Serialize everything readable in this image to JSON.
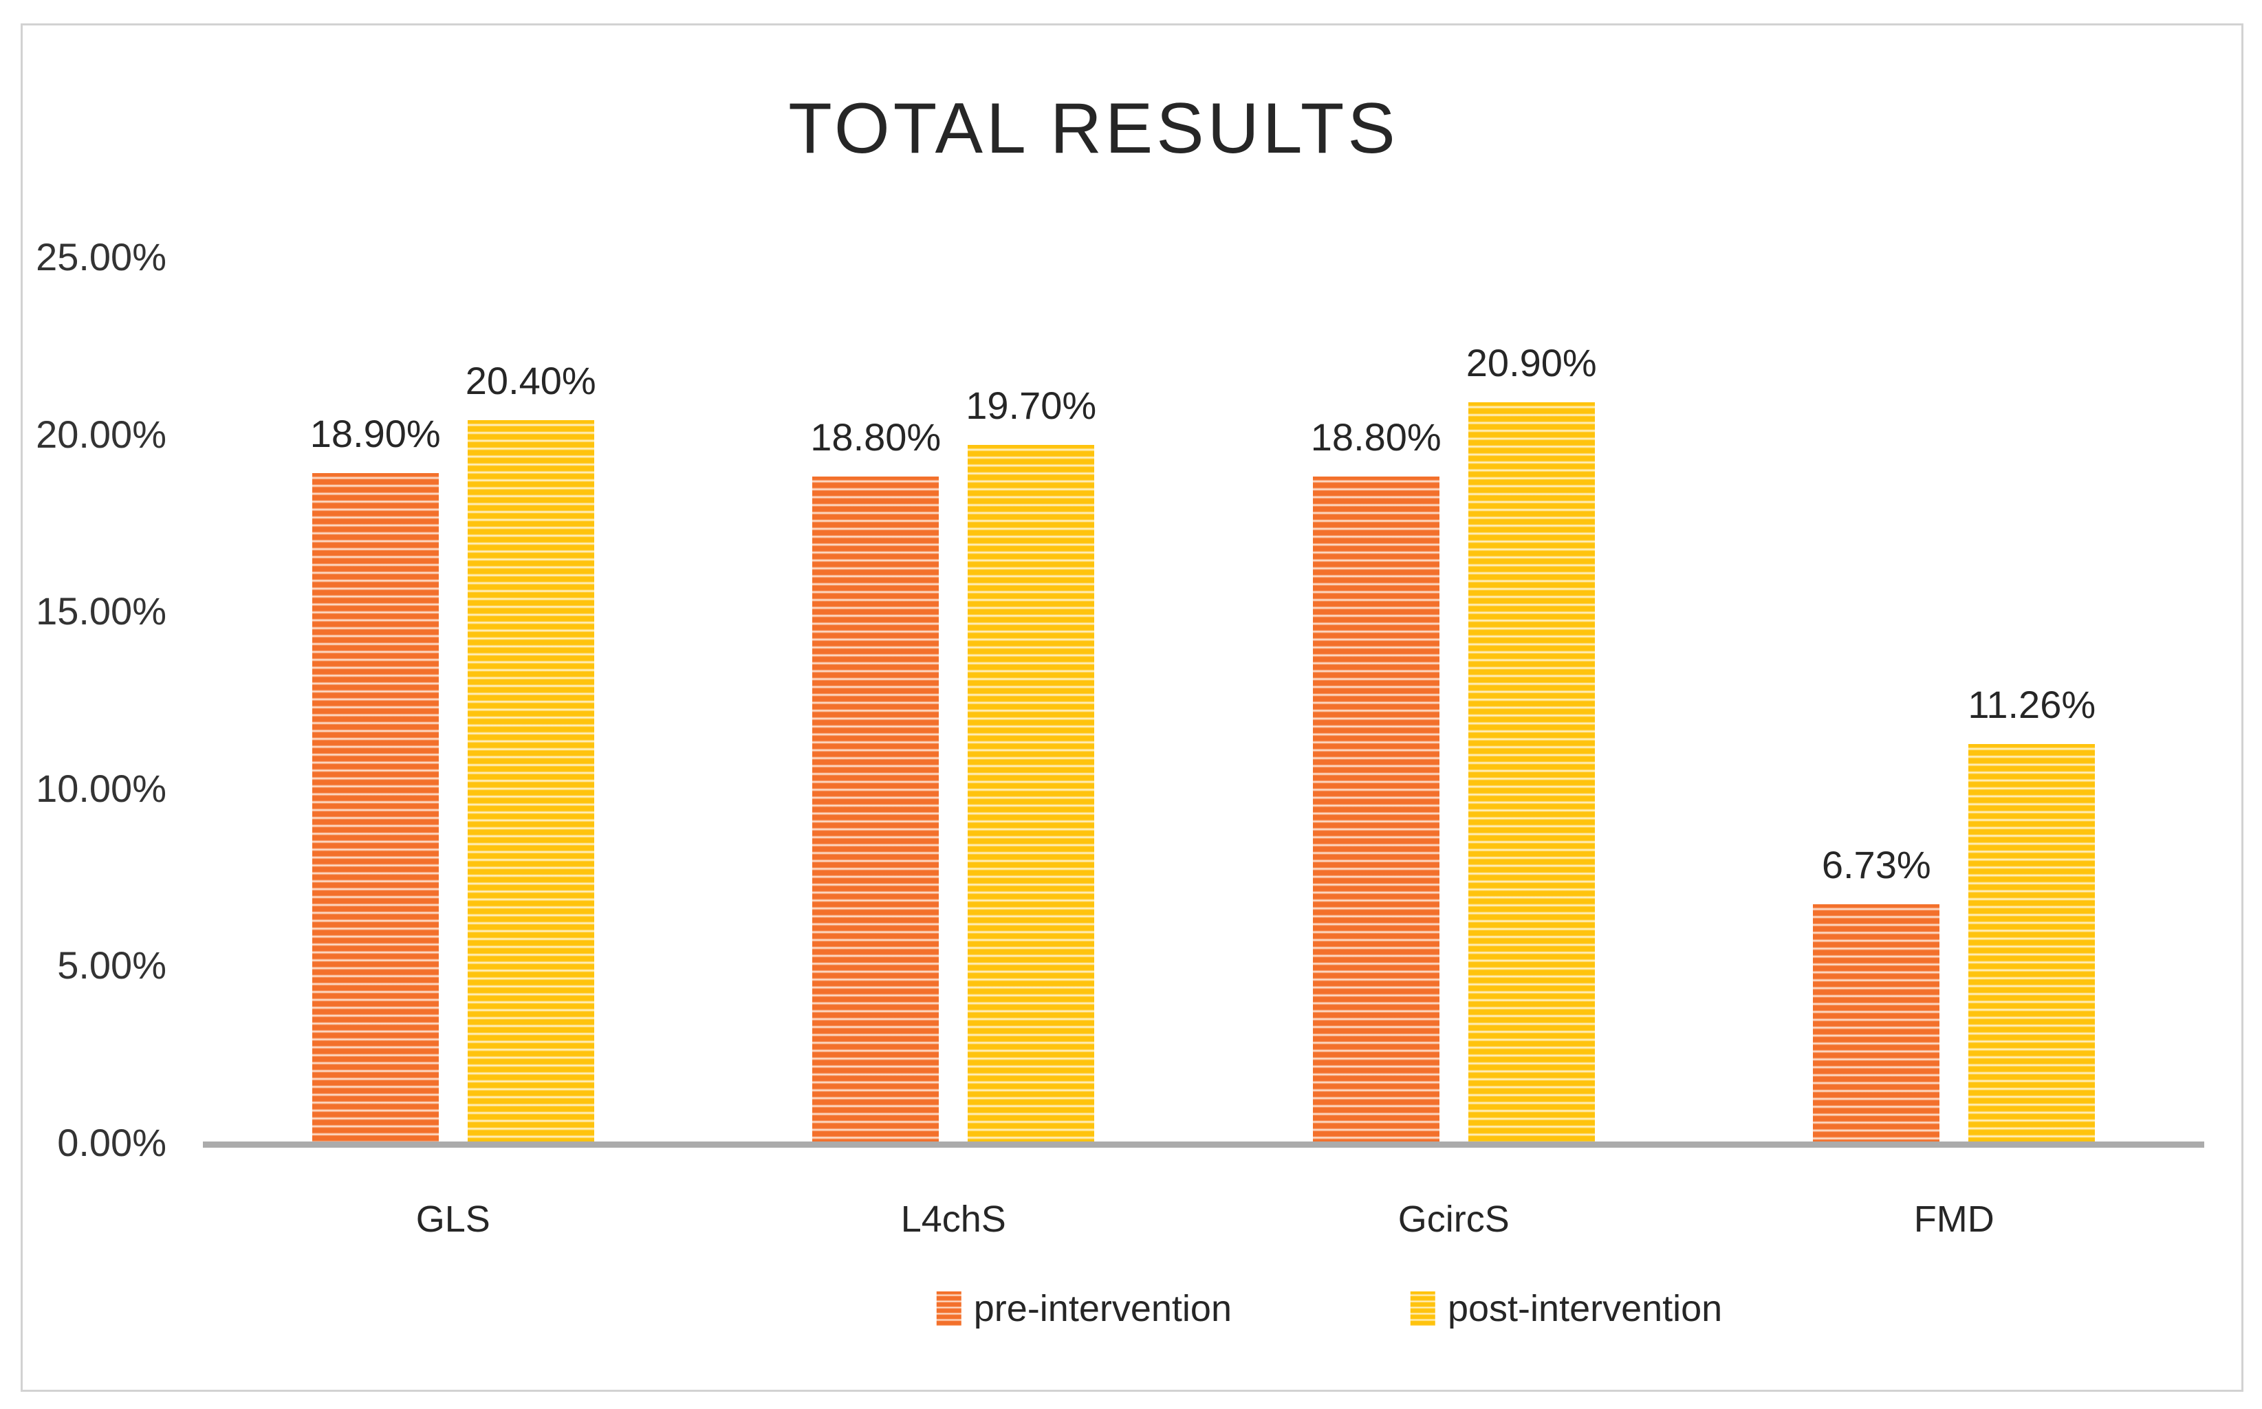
{
  "figure": {
    "border_color": "#D2D2D2",
    "background": "#ffffff"
  },
  "chart_data": {
    "type": "bar",
    "title": "TOTAL RESULTS",
    "categories": [
      "GLS",
      "L4chS",
      "GcircS",
      "FMD"
    ],
    "series": [
      {
        "name": "pre-intervention",
        "values": [
          18.9,
          18.8,
          18.8,
          6.73
        ],
        "labels": [
          "18.90%",
          "18.80%",
          "18.80%",
          "6.73%"
        ],
        "color": "#F3702B",
        "stripe_light": "#FFEFE3"
      },
      {
        "name": "post-intervention",
        "values": [
          20.4,
          19.7,
          20.9,
          11.26
        ],
        "labels": [
          "20.40%",
          "19.70%",
          "20.90%",
          "11.26%"
        ],
        "color": "#FFC30D",
        "stripe_light": "#FFF7DD"
      }
    ],
    "xlabel": "",
    "ylabel": "",
    "ylim": [
      0,
      25
    ],
    "y_ticks": [
      {
        "label": "25.00%",
        "value": 25
      },
      {
        "label": "20.00%",
        "value": 20
      },
      {
        "label": "15.00%",
        "value": 15
      },
      {
        "label": "10.00%",
        "value": 10
      },
      {
        "label": "5.00%",
        "value": 5
      },
      {
        "label": "0.00%",
        "value": 0
      }
    ],
    "grid": false,
    "legend_position": "bottom",
    "axis_line_color": "#ABABAB",
    "text_color": "#262626"
  }
}
